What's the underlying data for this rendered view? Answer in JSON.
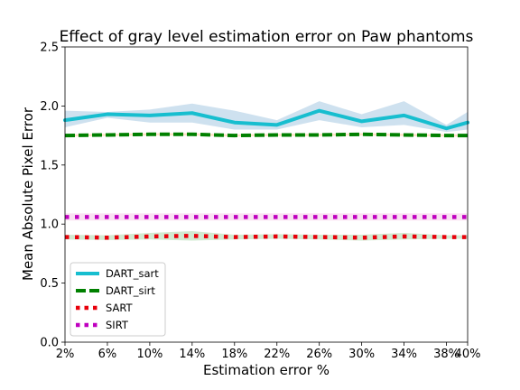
{
  "chart_data": {
    "type": "line",
    "title": "Effect of gray level estimation error on Paw phantoms",
    "xlabel": "Estimation error %",
    "ylabel": "Mean Absolute Pixel Error",
    "categories": [
      "2%",
      "6%",
      "10%",
      "14%",
      "18%",
      "22%",
      "26%",
      "30%",
      "34%",
      "38%",
      "40%"
    ],
    "x": [
      2,
      6,
      10,
      14,
      18,
      22,
      26,
      30,
      34,
      38,
      40
    ],
    "xlim": [
      2,
      40
    ],
    "ylim": [
      0.0,
      2.5
    ],
    "yticks": [
      "0.0",
      "0.5",
      "1.0",
      "1.5",
      "2.0",
      "2.5"
    ],
    "ytick_values": [
      0.0,
      0.5,
      1.0,
      1.5,
      2.0,
      2.5
    ],
    "grid": false,
    "legend_position": "lower-left",
    "series": [
      {
        "name": "DART_sart",
        "color": "#17becf",
        "style": "solid",
        "values": [
          1.88,
          1.93,
          1.92,
          1.94,
          1.86,
          1.84,
          1.96,
          1.87,
          1.92,
          1.81,
          1.86
        ],
        "band_low": [
          1.82,
          1.9,
          1.86,
          1.86,
          1.8,
          1.8,
          1.88,
          1.82,
          1.84,
          1.78,
          1.8
        ],
        "band_high": [
          1.96,
          1.95,
          1.97,
          2.02,
          1.96,
          1.88,
          2.04,
          1.93,
          2.04,
          1.84,
          1.95
        ],
        "band_color": "#1f77b4"
      },
      {
        "name": "DART_sirt",
        "color": "#008000",
        "style": "dashed",
        "values": [
          1.75,
          1.755,
          1.76,
          1.76,
          1.75,
          1.755,
          1.755,
          1.76,
          1.755,
          1.75,
          1.75
        ],
        "band_low": [
          1.74,
          1.745,
          1.75,
          1.75,
          1.74,
          1.745,
          1.745,
          1.75,
          1.745,
          1.74,
          1.74
        ],
        "band_high": [
          1.76,
          1.765,
          1.77,
          1.77,
          1.76,
          1.765,
          1.765,
          1.77,
          1.765,
          1.76,
          1.76
        ],
        "band_color": "#ff7f0e"
      },
      {
        "name": "SART",
        "color": "#e8000b",
        "style": "dotted",
        "values": [
          0.89,
          0.885,
          0.895,
          0.9,
          0.89,
          0.895,
          0.89,
          0.885,
          0.895,
          0.89,
          0.89
        ],
        "band_low": [
          0.87,
          0.865,
          0.87,
          0.86,
          0.87,
          0.875,
          0.87,
          0.86,
          0.87,
          0.875,
          0.875
        ],
        "band_high": [
          0.91,
          0.905,
          0.925,
          0.94,
          0.91,
          0.915,
          0.91,
          0.91,
          0.925,
          0.905,
          0.905
        ],
        "band_color": "#2ca02c"
      },
      {
        "name": "SIRT",
        "color": "#bf00bf",
        "style": "dotted",
        "values": [
          1.06,
          1.06,
          1.06,
          1.06,
          1.06,
          1.06,
          1.06,
          1.06,
          1.06,
          1.06,
          1.06
        ],
        "band_low": [
          1.03,
          1.03,
          1.03,
          1.03,
          1.03,
          1.03,
          1.03,
          1.03,
          1.03,
          1.03,
          1.03
        ],
        "band_high": [
          1.09,
          1.09,
          1.09,
          1.09,
          1.09,
          1.09,
          1.09,
          1.09,
          1.09,
          1.09,
          1.09
        ],
        "band_color": "#e377c2"
      }
    ]
  }
}
